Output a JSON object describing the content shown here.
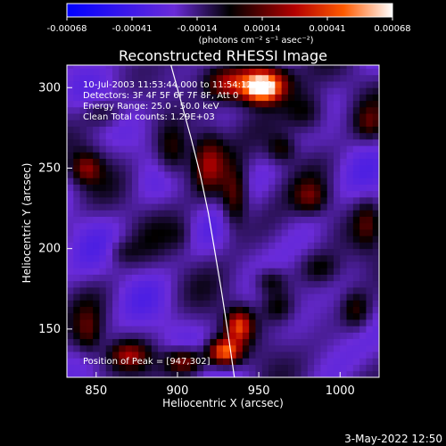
{
  "chart_data": {
    "type": "heatmap",
    "title": "Reconstructed RHESSI Image",
    "xlabel": "Heliocentric X (arcsec)",
    "ylabel": "Heliocentric Y (arcsec)",
    "xlim": [
      832,
      1024
    ],
    "ylim": [
      120,
      314
    ],
    "x_ticks": [
      850,
      900,
      950,
      1000
    ],
    "y_ticks": [
      150,
      200,
      250,
      300
    ],
    "colorbar": {
      "ticks": [
        "-0.00068",
        "-0.00041",
        "-0.00014",
        "0.00014",
        "0.00041",
        "0.00068"
      ],
      "range": [
        -0.00068,
        0.00068
      ],
      "unit_line": "(photons cm⁻² s⁻¹ asec⁻²)"
    },
    "annotations": [
      "10-Jul-2003 11:53:44.000 to 11:54:12.000",
      "Detectors: 3F 4F 5F 6F 7F 8F, Att 0",
      "Energy Range: 25.0 - 50.0 keV",
      "Clean    Total counts: 1.29E+03"
    ],
    "peak": {
      "label": "Position of Peak = [947,302]",
      "x": 947,
      "y": 302
    },
    "limb_curve": {
      "points": [
        [
          896,
          314
        ],
        [
          902,
          292
        ],
        [
          908,
          270
        ],
        [
          914,
          246
        ],
        [
          919,
          222
        ],
        [
          923,
          198
        ],
        [
          927,
          174
        ],
        [
          931,
          148
        ],
        [
          935,
          120
        ]
      ]
    },
    "hotspots": [
      {
        "x": 950,
        "y": 303,
        "value": 0.00068,
        "sx": 16,
        "sy": 10
      },
      {
        "x": 950,
        "y": 296,
        "value": 0.0006,
        "sx": 12,
        "sy": 8
      },
      {
        "x": 928,
        "y": 300,
        "value": 0.00034,
        "sx": 12,
        "sy": 10
      },
      {
        "x": 978,
        "y": 282,
        "value": 0.0003,
        "sx": 14,
        "sy": 14
      },
      {
        "x": 895,
        "y": 258,
        "value": 0.00028,
        "sx": 10,
        "sy": 16
      },
      {
        "x": 917,
        "y": 252,
        "value": 0.00038,
        "sx": 10,
        "sy": 18
      },
      {
        "x": 933,
        "y": 230,
        "value": 0.00036,
        "sx": 8,
        "sy": 18
      },
      {
        "x": 842,
        "y": 248,
        "value": 0.00032,
        "sx": 9,
        "sy": 9
      },
      {
        "x": 852,
        "y": 282,
        "value": 0.00018,
        "sx": 12,
        "sy": 8
      },
      {
        "x": 980,
        "y": 230,
        "value": 0.00027,
        "sx": 10,
        "sy": 10
      },
      {
        "x": 1015,
        "y": 214,
        "value": 0.00022,
        "sx": 8,
        "sy": 14
      },
      {
        "x": 1008,
        "y": 160,
        "value": 0.00024,
        "sx": 9,
        "sy": 12
      },
      {
        "x": 960,
        "y": 162,
        "value": 0.0002,
        "sx": 10,
        "sy": 10
      },
      {
        "x": 955,
        "y": 178,
        "value": 0.00022,
        "sx": 10,
        "sy": 8
      },
      {
        "x": 986,
        "y": 186,
        "value": 0.00018,
        "sx": 12,
        "sy": 10
      },
      {
        "x": 936,
        "y": 150,
        "value": 0.00052,
        "sx": 8,
        "sy": 10
      },
      {
        "x": 927,
        "y": 134,
        "value": 0.00066,
        "sx": 10,
        "sy": 8
      },
      {
        "x": 902,
        "y": 128,
        "value": 0.00044,
        "sx": 12,
        "sy": 8
      },
      {
        "x": 868,
        "y": 132,
        "value": 0.00032,
        "sx": 12,
        "sy": 8
      },
      {
        "x": 843,
        "y": 146,
        "value": 0.00024,
        "sx": 8,
        "sy": 14
      },
      {
        "x": 864,
        "y": 196,
        "value": 0.00012,
        "sx": 10,
        "sy": 8
      },
      {
        "x": 900,
        "y": 206,
        "value": 0.0001,
        "sx": 8,
        "sy": 10
      },
      {
        "x": 1016,
        "y": 276,
        "value": 0.00018,
        "sx": 8,
        "sy": 10
      },
      {
        "x": 962,
        "y": 260,
        "value": 0.00024,
        "sx": 9,
        "sy": 9
      }
    ]
  },
  "timestamp": "3-May-2022 12:50"
}
